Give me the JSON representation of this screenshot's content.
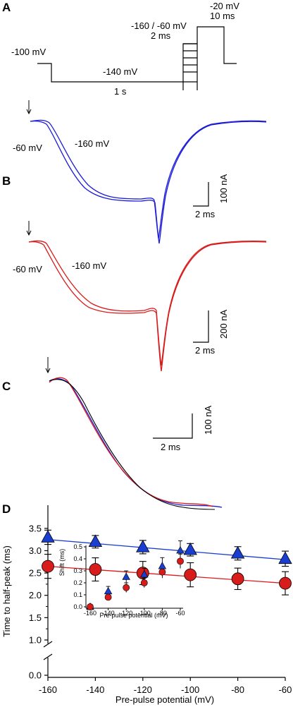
{
  "panels": {
    "a": {
      "letter": "A",
      "labels": {
        "hold": "-100 mV",
        "cond": "-140 mV",
        "cond_dur": "1 s",
        "pre": "-160 / -60 mV",
        "pre_dur": "2 ms",
        "test": "-20 mV",
        "test_dur": "10 ms"
      }
    },
    "b": {
      "letter": "B",
      "blue": {
        "v1": "-60 mV",
        "v2": "-160 mV",
        "scale_y": "100 nA",
        "scale_x": "2 ms"
      },
      "red": {
        "v1": "-60 mV",
        "v2": "-160 mV",
        "scale_y": "200 nA",
        "scale_x": "2 ms"
      }
    },
    "c": {
      "letter": "C",
      "scale_y": "100 nA",
      "scale_x": "2 ms"
    },
    "d": {
      "letter": "D"
    }
  },
  "colors": {
    "blue": "#1c1cd8",
    "red": "#d81c1c",
    "triangle": "#1a3fd0",
    "circle": "#d81c1c",
    "fit": "#000000"
  },
  "chart_data": [
    {
      "type": "scatter",
      "title": "",
      "xlabel": "Pre-pulse potential (mV)",
      "ylabel": "Time to half-peak (ms)",
      "xlim": [
        -160,
        -60
      ],
      "ylim": [
        0,
        3.75
      ],
      "axis_break": [
        1.0,
        1.25
      ],
      "xticks": [
        "-160",
        "-140",
        "-120",
        "-100",
        "-80",
        "-60"
      ],
      "yticks": [
        "0.0",
        "1.0",
        "1.5",
        "2.0",
        "2.5",
        "3.0",
        "3.5"
      ],
      "x": [
        -160,
        -140,
        -120,
        -100,
        -80,
        -60
      ],
      "series": [
        {
          "marker": "triangle",
          "color": "#1a3fd0",
          "values": [
            3.3,
            3.2,
            3.08,
            3.02,
            2.94,
            2.82
          ],
          "errors": [
            0.16,
            0.14,
            0.15,
            0.14,
            0.15,
            0.17
          ],
          "fit": [
            3.25,
            2.8
          ]
        },
        {
          "marker": "circle",
          "color": "#d81c1c",
          "values": [
            2.65,
            2.58,
            2.5,
            2.46,
            2.37,
            2.27
          ],
          "errors": [
            0.27,
            0.26,
            0.26,
            0.27,
            0.24,
            0.26
          ],
          "fit": [
            2.65,
            2.27
          ]
        }
      ]
    },
    {
      "type": "scatter",
      "title": "",
      "xlabel": "Pre-pulse potential (mV)",
      "ylabel": "Shift (ms)",
      "xlim": [
        -160,
        -60
      ],
      "ylim": [
        0,
        0.5
      ],
      "xticks": [
        "-160",
        "-140",
        "-120",
        "-100",
        "-80",
        "-60"
      ],
      "yticks": [
        "0.0",
        "0.1",
        "0.2",
        "0.3",
        "0.4",
        "0.5"
      ],
      "x": [
        -160,
        -140,
        -120,
        -100,
        -80,
        -60
      ],
      "series": [
        {
          "marker": "triangle",
          "color": "#1a3fd0",
          "values": [
            0.0,
            0.13,
            0.25,
            0.27,
            0.34,
            0.47
          ],
          "errors": [
            0.0,
            0.04,
            0.05,
            0.05,
            0.07,
            0.08
          ]
        },
        {
          "marker": "circle",
          "color": "#d81c1c",
          "values": [
            0.0,
            0.08,
            0.16,
            0.2,
            0.29,
            0.38
          ],
          "errors": [
            0.0,
            0.02,
            0.04,
            0.04,
            0.05,
            0.06
          ]
        }
      ]
    }
  ]
}
